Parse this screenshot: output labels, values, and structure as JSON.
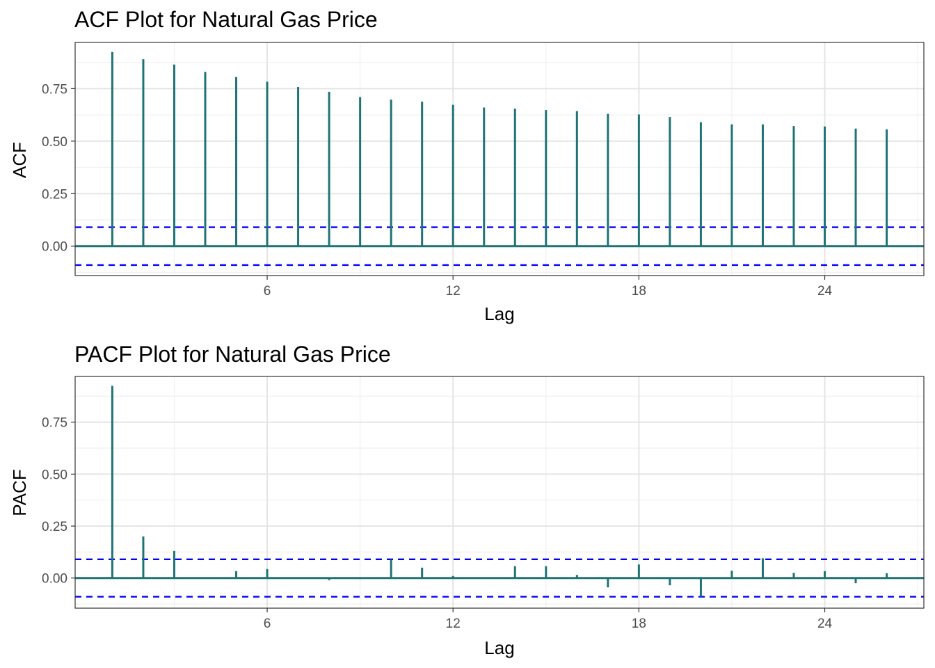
{
  "chart_data": [
    {
      "type": "bar",
      "title": "ACF Plot for Natural Gas Price",
      "xlabel": "Lag",
      "ylabel": "ACF",
      "x": [
        1,
        2,
        3,
        4,
        5,
        6,
        7,
        8,
        9,
        10,
        11,
        12,
        13,
        14,
        15,
        16,
        17,
        18,
        19,
        20,
        21,
        22,
        23,
        24,
        25,
        26
      ],
      "values": [
        0.925,
        0.89,
        0.865,
        0.83,
        0.805,
        0.783,
        0.758,
        0.735,
        0.71,
        0.698,
        0.688,
        0.673,
        0.66,
        0.655,
        0.648,
        0.643,
        0.63,
        0.627,
        0.615,
        0.59,
        0.58,
        0.58,
        0.572,
        0.57,
        0.56,
        0.556
      ],
      "xlim": [
        -0.2,
        27.2
      ],
      "ylim": [
        -0.14,
        0.97
      ],
      "xticks": [
        6,
        12,
        18,
        24
      ],
      "xtick_labels": [
        "6",
        "12",
        "18",
        "24"
      ],
      "yticks": [
        0,
        0.25,
        0.5,
        0.75
      ],
      "ytick_labels": [
        "0.00",
        "0.25",
        "0.50",
        "0.75"
      ],
      "ci_upper": 0.09,
      "ci_lower": -0.09,
      "grid": true,
      "bar_color": "#1f7376",
      "ci_color": "#0000ff"
    },
    {
      "type": "bar",
      "title": "PACF Plot for Natural Gas Price",
      "xlabel": "Lag",
      "ylabel": "PACF",
      "x": [
        1,
        2,
        3,
        4,
        5,
        6,
        7,
        8,
        9,
        10,
        11,
        12,
        13,
        14,
        15,
        16,
        17,
        18,
        19,
        20,
        21,
        22,
        23,
        24,
        25,
        26
      ],
      "values": [
        0.925,
        0.2,
        0.13,
        -0.003,
        0.033,
        0.043,
        -0.002,
        -0.01,
        -0.005,
        0.088,
        0.05,
        0.01,
        0.002,
        0.057,
        0.057,
        0.015,
        -0.045,
        0.065,
        -0.035,
        -0.09,
        0.035,
        0.095,
        0.025,
        0.033,
        -0.025,
        0.023
      ],
      "xlim": [
        -0.2,
        27.2
      ],
      "ylim": [
        -0.145,
        0.97
      ],
      "xticks": [
        6,
        12,
        18,
        24
      ],
      "xtick_labels": [
        "6",
        "12",
        "18",
        "24"
      ],
      "yticks": [
        0,
        0.25,
        0.5,
        0.75
      ],
      "ytick_labels": [
        "0.00",
        "0.25",
        "0.50",
        "0.75"
      ],
      "ci_upper": 0.09,
      "ci_lower": -0.09,
      "grid": true,
      "bar_color": "#1f7376",
      "ci_color": "#0000ff"
    }
  ]
}
